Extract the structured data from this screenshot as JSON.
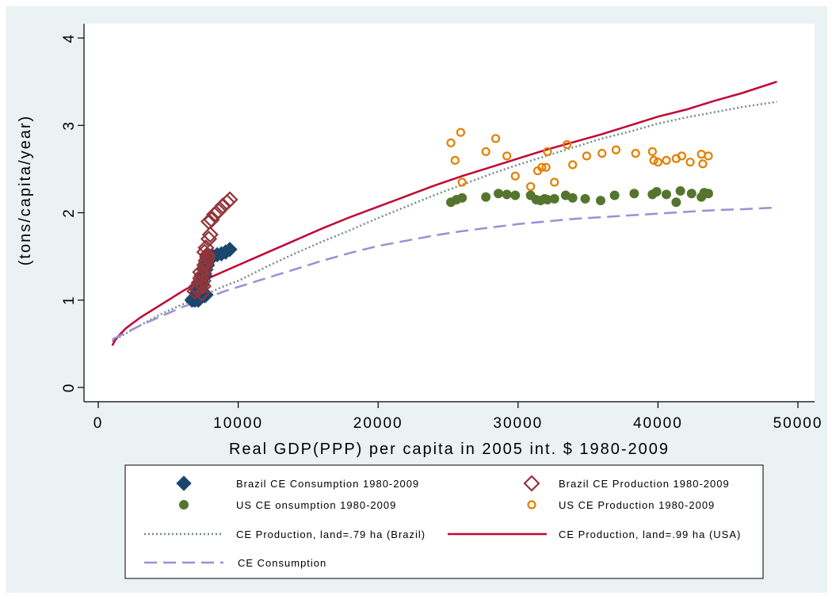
{
  "chart_data": {
    "type": "scatter",
    "title": "",
    "xlabel": "Real GDP(PPP) per capita in 2005 int. $ 1980-2009",
    "ylabel": "(tons/capita/year)",
    "xlim": [
      0,
      50000
    ],
    "ylim": [
      0,
      4
    ],
    "x_ticks": [
      0,
      10000,
      20000,
      30000,
      40000,
      50000
    ],
    "y_ticks": [
      0,
      1,
      2,
      3,
      4
    ],
    "x_tick_labels": [
      "0",
      "10000",
      "20000",
      "30000",
      "40000",
      "50000"
    ],
    "y_tick_labels": [
      "0",
      "1",
      "2",
      "3",
      "4"
    ],
    "grid": false,
    "legend_position": "bottom",
    "series": [
      {
        "name": "Brazil CE Consumption 1980-2009",
        "kind": "scatter",
        "marker": "diamond-filled",
        "color": "#1a476f",
        "x": [
          6700,
          6800,
          6900,
          7000,
          7050,
          7100,
          7150,
          7200,
          7250,
          7300,
          7400,
          7500,
          7600,
          7700,
          7800,
          7600,
          7500,
          7700,
          7900,
          8000,
          8200,
          8500,
          8800,
          9100,
          9400,
          7400,
          7300,
          7600,
          7700,
          7200
        ],
        "y": [
          1.0,
          1.02,
          1.0,
          1.05,
          1.08,
          1.1,
          1.0,
          1.04,
          1.12,
          1.15,
          1.2,
          1.25,
          1.3,
          1.35,
          1.4,
          1.05,
          1.08,
          1.42,
          1.46,
          1.48,
          1.5,
          1.52,
          1.53,
          1.55,
          1.58,
          1.1,
          1.18,
          1.28,
          1.06,
          1.02
        ]
      },
      {
        "name": "Brazil CE Production 1980-2009",
        "kind": "scatter",
        "marker": "diamond-hollow",
        "color": "#90353b",
        "x": [
          6900,
          7000,
          7100,
          7200,
          7300,
          7400,
          7500,
          7600,
          7700,
          7800,
          7600,
          7700,
          7800,
          7900,
          8000,
          7900,
          8100,
          8300,
          8600,
          8900,
          9200,
          9400,
          7500,
          7400,
          7300,
          7600,
          7700,
          7800,
          7500,
          7400
        ],
        "y": [
          1.1,
          1.15,
          1.12,
          1.2,
          1.25,
          1.18,
          1.3,
          1.4,
          1.45,
          1.5,
          1.55,
          1.6,
          1.48,
          1.7,
          1.75,
          1.9,
          1.92,
          1.98,
          2.02,
          2.08,
          2.12,
          2.15,
          1.22,
          1.28,
          1.32,
          1.35,
          1.42,
          1.52,
          1.16,
          1.08
        ]
      },
      {
        "name": "US CE onsumption 1980-2009",
        "kind": "scatter",
        "marker": "circle-filled",
        "color": "#55752f",
        "x": [
          25200,
          25600,
          26000,
          27700,
          28600,
          29200,
          29800,
          30900,
          31300,
          31600,
          31900,
          32100,
          32600,
          33400,
          33900,
          34800,
          35900,
          36900,
          38300,
          39600,
          39900,
          40600,
          41300,
          41600,
          42400,
          43100,
          43300,
          43600
        ],
        "y": [
          2.12,
          2.15,
          2.17,
          2.18,
          2.22,
          2.21,
          2.2,
          2.2,
          2.15,
          2.14,
          2.16,
          2.15,
          2.16,
          2.2,
          2.17,
          2.16,
          2.14,
          2.2,
          2.22,
          2.21,
          2.24,
          2.21,
          2.12,
          2.25,
          2.22,
          2.18,
          2.23,
          2.22
        ]
      },
      {
        "name": "US CE Production 1980-2009",
        "kind": "scatter",
        "marker": "circle-hollow",
        "color": "#e37e00",
        "x": [
          25200,
          25500,
          25900,
          26000,
          27700,
          28400,
          29200,
          29800,
          30900,
          31400,
          31700,
          32100,
          32000,
          32600,
          33500,
          33900,
          34900,
          36000,
          37000,
          38400,
          39600,
          39700,
          40000,
          40600,
          41300,
          41700,
          42300,
          43100,
          43200,
          43600
        ],
        "y": [
          2.8,
          2.6,
          2.92,
          2.35,
          2.7,
          2.85,
          2.65,
          2.42,
          2.3,
          2.48,
          2.52,
          2.7,
          2.52,
          2.35,
          2.78,
          2.55,
          2.65,
          2.68,
          2.72,
          2.68,
          2.7,
          2.6,
          2.58,
          2.6,
          2.62,
          2.65,
          2.58,
          2.67,
          2.56,
          2.65
        ]
      },
      {
        "name": "CE Production, land=.79 ha (Brazil)",
        "kind": "line",
        "dash": "dotted",
        "color": "#6e8e84",
        "x": [
          1000,
          2000,
          3000,
          4000,
          5000,
          6000,
          7000,
          8000,
          9000,
          10000,
          12000,
          14000,
          16000,
          18000,
          20000,
          22000,
          24000,
          26000,
          28000,
          30000,
          32000,
          34000,
          36000,
          38000,
          40000,
          42000,
          44000,
          46000,
          48500
        ],
        "y": [
          0.53,
          0.62,
          0.71,
          0.8,
          0.88,
          0.95,
          1.02,
          1.09,
          1.16,
          1.22,
          1.38,
          1.53,
          1.67,
          1.8,
          1.94,
          2.07,
          2.2,
          2.32,
          2.44,
          2.55,
          2.65,
          2.75,
          2.85,
          2.93,
          3.02,
          3.09,
          3.15,
          3.21,
          3.27
        ]
      },
      {
        "name": "CE Production, land=.99 ha (USA)",
        "kind": "line",
        "dash": "solid",
        "color": "#c10534",
        "x": [
          1000,
          1200,
          1500,
          2000,
          3000,
          4000,
          5000,
          6000,
          7000,
          8000,
          9000,
          10000,
          12000,
          14000,
          16000,
          18000,
          20000,
          22000,
          24000,
          26000,
          28000,
          30000,
          32000,
          34000,
          36000,
          38000,
          40000,
          42000,
          44000,
          46000,
          48500
        ],
        "y": [
          0.48,
          0.54,
          0.6,
          0.68,
          0.8,
          0.9,
          1.0,
          1.1,
          1.19,
          1.26,
          1.33,
          1.4,
          1.54,
          1.68,
          1.82,
          1.95,
          2.07,
          2.19,
          2.31,
          2.42,
          2.52,
          2.62,
          2.72,
          2.81,
          2.9,
          3.0,
          3.1,
          3.18,
          3.28,
          3.37,
          3.5
        ]
      },
      {
        "name": "CE Consumption",
        "kind": "line",
        "dash": "dashed",
        "color": "#9c8ed6",
        "x": [
          1000,
          2000,
          3000,
          4000,
          5000,
          6000,
          7000,
          8000,
          9000,
          10000,
          12000,
          14000,
          16000,
          18000,
          20000,
          22000,
          24000,
          26000,
          28000,
          30000,
          32000,
          34000,
          36000,
          38000,
          40000,
          42000,
          44000,
          46000,
          48500
        ],
        "y": [
          0.55,
          0.63,
          0.71,
          0.78,
          0.85,
          0.92,
          0.98,
          1.04,
          1.1,
          1.15,
          1.25,
          1.35,
          1.45,
          1.54,
          1.62,
          1.68,
          1.74,
          1.79,
          1.83,
          1.87,
          1.9,
          1.93,
          1.95,
          1.97,
          1.99,
          2.01,
          2.03,
          2.04,
          2.06
        ]
      }
    ]
  }
}
